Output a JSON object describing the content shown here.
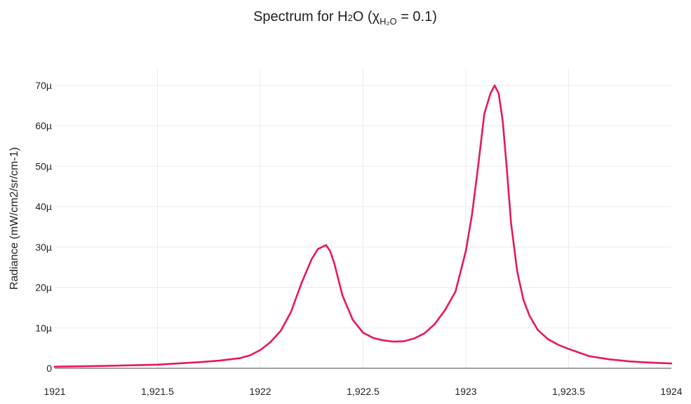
{
  "chart_data": {
    "type": "line",
    "title_parts": {
      "prefix": "Spectrum for H",
      "sub1": "2",
      "mid": "O (χ",
      "subscript": "H₂O",
      "suffix": " = 0.1)"
    },
    "xlabel": "",
    "ylabel": "Radiance (mW/cm2/sr/cm-1)",
    "xlim": [
      1921,
      1924
    ],
    "ylim": [
      0,
      7e-05
    ],
    "x_ticks": [
      1921,
      1921.5,
      1922,
      1922.5,
      1923,
      1923.5,
      1924
    ],
    "x_tick_labels": [
      "1921",
      "1,921.5",
      "1922",
      "1,922.5",
      "1923",
      "1,923.5",
      "1924"
    ],
    "y_ticks": [
      0,
      1e-05,
      2e-05,
      3e-05,
      4e-05,
      5e-05,
      6e-05,
      7e-05
    ],
    "y_tick_labels": [
      "0",
      "10µ",
      "20µ",
      "30µ",
      "40µ",
      "50µ",
      "60µ",
      "70µ"
    ],
    "grid": true,
    "line_color": "#e8175d",
    "series": [
      {
        "x": [
          1921.0,
          1921.25,
          1921.5,
          1921.6,
          1921.7,
          1921.8,
          1921.9,
          1921.95,
          1922.0,
          1922.05,
          1922.1,
          1922.15,
          1922.2,
          1922.25,
          1922.28,
          1922.3,
          1922.32,
          1922.34,
          1922.36,
          1922.38,
          1922.4,
          1922.45,
          1922.5,
          1922.55,
          1922.6,
          1922.65,
          1922.7,
          1922.75,
          1922.8,
          1922.85,
          1922.9,
          1922.95,
          1923.0,
          1923.03,
          1923.06,
          1923.09,
          1923.12,
          1923.14,
          1923.16,
          1923.18,
          1923.2,
          1923.22,
          1923.25,
          1923.28,
          1923.31,
          1923.35,
          1923.4,
          1923.45,
          1923.5,
          1923.55,
          1923.6,
          1923.7,
          1923.8,
          1923.9,
          1924.0
        ],
        "y": [
          4e-07,
          6e-07,
          9e-07,
          1.2e-06,
          1.5e-06,
          1.9e-06,
          2.5e-06,
          3.2e-06,
          4.5e-06,
          6.5e-06,
          9.3e-06,
          1.4e-05,
          2.1e-05,
          2.7e-05,
          2.95e-05,
          3e-05,
          3.05e-05,
          2.9e-05,
          2.6e-05,
          2.2e-05,
          1.8e-05,
          1.2e-05,
          8.8e-06,
          7.5e-06,
          6.9e-06,
          6.6e-06,
          6.7e-06,
          7.4e-06,
          8.7e-06,
          1.1e-05,
          1.45e-05,
          1.9e-05,
          2.9e-05,
          3.8e-05,
          5e-05,
          6.3e-05,
          6.8e-05,
          7e-05,
          6.8e-05,
          6.1e-05,
          4.9e-05,
          3.6e-05,
          2.4e-05,
          1.7e-05,
          1.3e-05,
          9.5e-06,
          7.2e-06,
          5.8e-06,
          4.8e-06,
          3.9e-06,
          3e-06,
          2.2e-06,
          1.7e-06,
          1.4e-06,
          1.2e-06
        ]
      }
    ]
  }
}
